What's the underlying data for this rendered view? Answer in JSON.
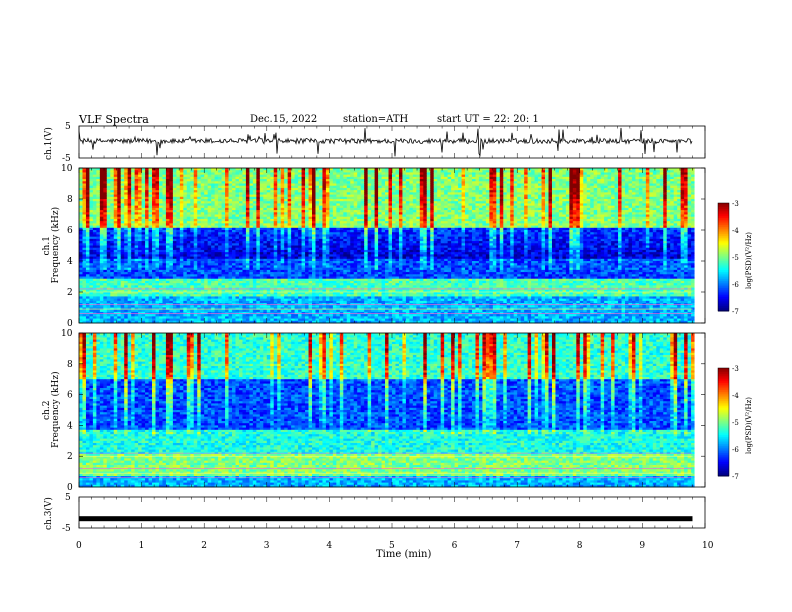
{
  "header": {
    "title": "VLF  Spectra",
    "date": "Dec.15, 2022",
    "station": "station=ATH",
    "start": "start  UT  =    22: 20: 1"
  },
  "chart_data": [
    {
      "type": "line",
      "panel": "ch1-waveform",
      "ylabel": "ch.1(V)",
      "ylim": [
        -5,
        5
      ],
      "yticks": [
        "5",
        "-5"
      ],
      "x_range_min": [
        0,
        9.8
      ],
      "description_values": "noisy trace centered near 0 V with occasional spikes",
      "color": "#000000"
    },
    {
      "type": "heatmap",
      "panel": "ch1-spectrogram",
      "ylabel": "ch.1\nFrequency (kHz)",
      "ylabel_line1": "ch.1",
      "ylabel_line2": "Frequency  (kHz)",
      "ylim": [
        0,
        10
      ],
      "yticks": [
        "0",
        "2",
        "4",
        "6",
        "8",
        "10"
      ],
      "x_range_min": [
        0,
        9.8
      ],
      "colorbar": {
        "label": "log(PSD)(V²/Hz)",
        "range": [
          -7,
          -3
        ],
        "ticks": [
          "-3",
          "-4",
          "-5",
          "-6",
          "-7"
        ]
      }
    },
    {
      "type": "heatmap",
      "panel": "ch2-spectrogram",
      "ylabel_line1": "ch.2",
      "ylabel_line2": "Frequency  (kHz)",
      "ylim": [
        0,
        10
      ],
      "yticks": [
        "0",
        "2",
        "4",
        "6",
        "8",
        "10"
      ],
      "x_range_min": [
        0,
        9.8
      ],
      "colorbar": {
        "label": "log(PSD)(V²/Hz)",
        "range": [
          -7,
          -3
        ],
        "ticks": [
          "-3",
          "-4",
          "-5",
          "-6",
          "-7"
        ]
      }
    },
    {
      "type": "line",
      "panel": "ch3-waveform",
      "ylabel": "ch.3(V)",
      "ylim": [
        -5,
        5
      ],
      "yticks": [
        "5",
        "-5"
      ],
      "x_range_min": [
        0,
        9.8
      ],
      "values_note": "flat trace near -2 V",
      "level": -2,
      "color": "#000000"
    }
  ],
  "xaxis": {
    "label": "Time  (min)",
    "ticks": [
      "0",
      "1",
      "2",
      "3",
      "4",
      "5",
      "6",
      "7",
      "8",
      "9",
      "10"
    ],
    "range": [
      0,
      10
    ]
  },
  "colors": {
    "spectro_low": "#000080",
    "spectro_mid": "#00c8c8",
    "spectro_high": "#ff0000"
  }
}
